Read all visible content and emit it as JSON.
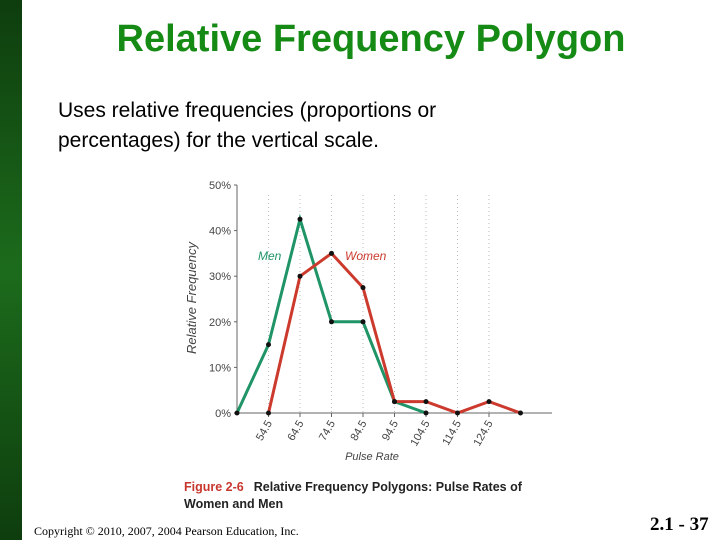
{
  "slide": {
    "title": "Relative Frequency Polygon",
    "body": "Uses relative frequencies (proportions or percentages) for the vertical scale.",
    "caption_label": "Figure 2-6",
    "caption": "Relative Frequency Polygons: Pulse Rates of Women and Men",
    "copyright": "Copyright © 2010, 2007, 2004 Pearson Education, Inc.",
    "page": "2.1 - 37"
  },
  "chart_data": {
    "type": "line",
    "x_label": "Pulse Rate",
    "y_label": "Relative Frequency",
    "x": [
      44.5,
      54.5,
      64.5,
      74.5,
      84.5,
      94.5,
      104.5,
      114.5,
      124.5,
      134.5
    ],
    "series": [
      {
        "name": "Men",
        "color": "#1f9467",
        "values": [
          0,
          15,
          42.5,
          20,
          20,
          2.5,
          0,
          null,
          null,
          null
        ]
      },
      {
        "name": "Women",
        "color": "#cc3a2e",
        "values": [
          null,
          0,
          30,
          35,
          27.5,
          2.5,
          2.5,
          0,
          2.5,
          0
        ]
      }
    ],
    "xlim": [
      44.5,
      144.5
    ],
    "ylim": [
      0,
      50
    ],
    "xticks": [
      54.5,
      64.5,
      74.5,
      84.5,
      94.5,
      104.5,
      114.5,
      124.5
    ],
    "yticks": [
      {
        "value": 0,
        "label": "0%"
      },
      {
        "value": 10,
        "label": "10%"
      },
      {
        "value": 20,
        "label": "20%"
      },
      {
        "value": 30,
        "label": "30%"
      },
      {
        "value": 40,
        "label": "40%"
      },
      {
        "value": 50,
        "label": "50%"
      }
    ],
    "grid": true
  }
}
